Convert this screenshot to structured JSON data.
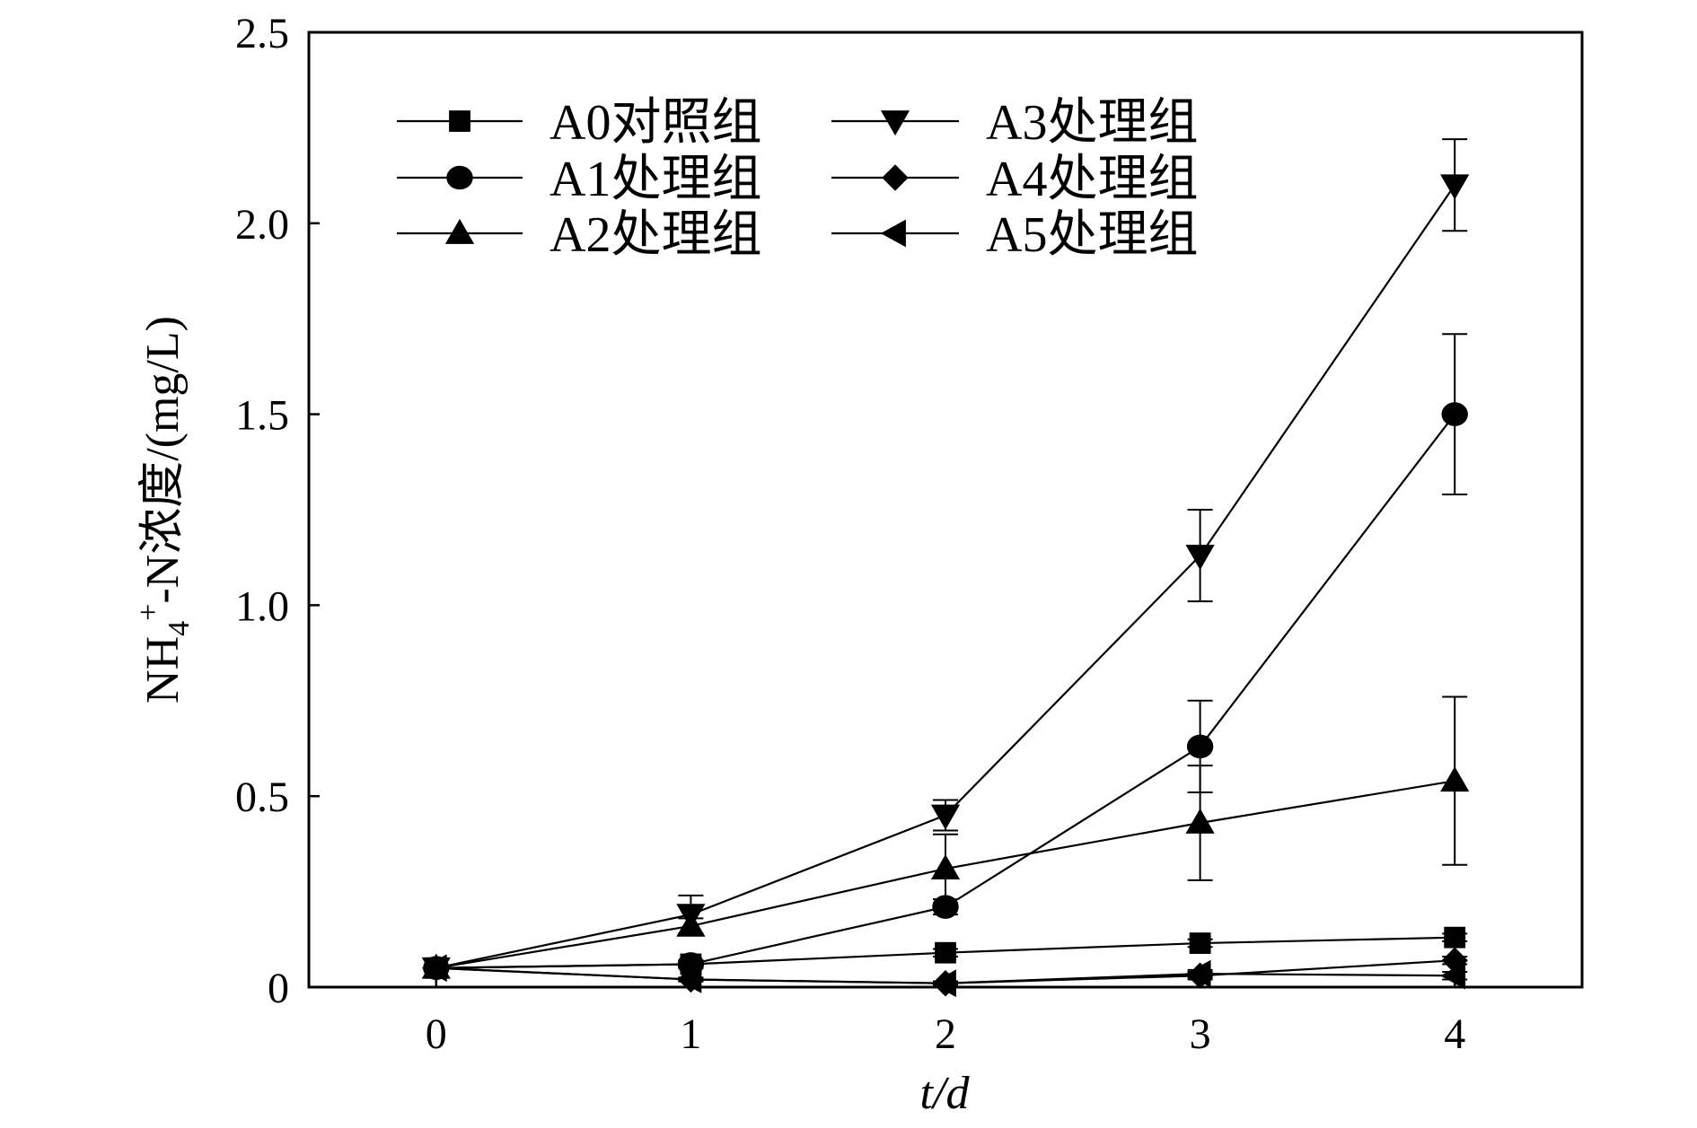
{
  "chart_data": {
    "type": "line",
    "xlabel": "t/d",
    "ylabel_main": "NH",
    "ylabel_sub": "4",
    "ylabel_sup": "+",
    "ylabel_rest": "-N浓度/(mg/L)",
    "x": [
      0,
      1,
      2,
      3,
      4
    ],
    "xlim": [
      -0.5,
      4.5
    ],
    "ylim": [
      0,
      2.5
    ],
    "xticks": [
      "0",
      "1",
      "2",
      "3",
      "4"
    ],
    "yticks": [
      "0",
      "0.5",
      "1.0",
      "1.5",
      "2.0",
      "2.5"
    ],
    "ytick_values": [
      0,
      0.5,
      1.0,
      1.5,
      2.0,
      2.5
    ],
    "grid": false,
    "legend_position": "top-left",
    "series": [
      {
        "name": "A0对照组",
        "marker": "square",
        "values": [
          0.05,
          0.06,
          0.09,
          0.115,
          0.13
        ],
        "errors": [
          0,
          0.01,
          0.01,
          0.01,
          0.01
        ]
      },
      {
        "name": "A1处理组",
        "marker": "circle",
        "values": [
          0.05,
          0.06,
          0.21,
          0.63,
          1.5
        ],
        "errors": [
          0,
          0.01,
          0.02,
          0.12,
          0.21
        ]
      },
      {
        "name": "A2处理组",
        "marker": "triangle-up",
        "values": [
          0.05,
          0.16,
          0.31,
          0.43,
          0.54
        ],
        "errors": [
          0,
          0.02,
          0.09,
          0.15,
          0.22
        ]
      },
      {
        "name": "A3处理组",
        "marker": "triangle-down",
        "values": [
          0.05,
          0.19,
          0.45,
          1.13,
          2.1
        ],
        "errors": [
          0,
          0.05,
          0.04,
          0.12,
          0.12
        ]
      },
      {
        "name": "A4处理组",
        "marker": "diamond",
        "values": [
          0.05,
          0.02,
          0.01,
          0.03,
          0.07
        ],
        "errors": [
          0,
          0.005,
          0.005,
          0.01,
          0.01
        ]
      },
      {
        "name": "A5处理组",
        "marker": "triangle-left",
        "values": [
          0.05,
          0.02,
          0.01,
          0.035,
          0.03
        ],
        "errors": [
          0,
          0.005,
          0.005,
          0.01,
          0.01
        ]
      }
    ]
  }
}
